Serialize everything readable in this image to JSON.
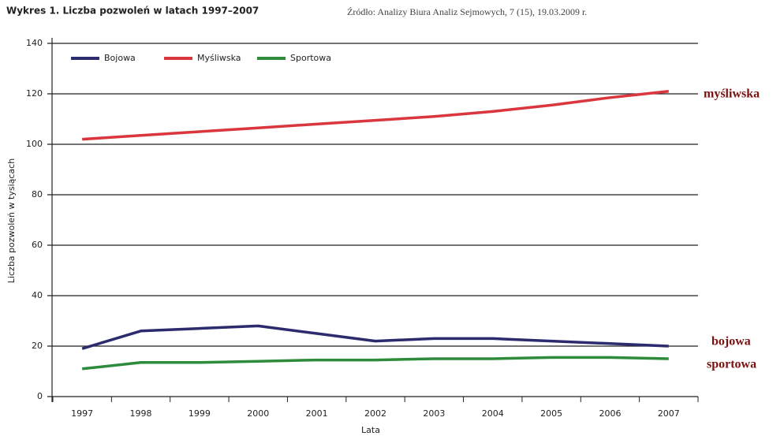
{
  "chart_data": {
    "type": "line",
    "title": "Wykres 1. Liczba pozwoleń w latach 1997–2007",
    "subtitle": "Źródło: Analizy Biura Analiz Sejmowych, 7 (15), 19.03.2009 r.",
    "x_label": "Lata",
    "y_label": "Liczba pozwoleń w tysiącach",
    "categories": [
      "1997",
      "1998",
      "1999",
      "2000",
      "2001",
      "2002",
      "2003",
      "2004",
      "2005",
      "2006",
      "2007"
    ],
    "series": [
      {
        "name": "Bojowa",
        "color": "#2b2b6e",
        "values": [
          19,
          26,
          27,
          28,
          25,
          22,
          23,
          23,
          22,
          21,
          20
        ]
      },
      {
        "name": "Myśliwska",
        "color": "#d9363e",
        "values": [
          102,
          103.5,
          105,
          106.5,
          108,
          109.5,
          111,
          113,
          115.5,
          118.5,
          121
        ]
      },
      {
        "name": "Sportowa",
        "color": "#2e8b3c",
        "values": [
          11,
          13.5,
          13.5,
          14,
          14.5,
          14.5,
          15,
          15,
          15.5,
          15.5,
          15
        ]
      }
    ],
    "annotations": [
      "myśliwska",
      "bojowa",
      "sportowa"
    ],
    "ylim": [
      0,
      140
    ],
    "yticks": [
      0,
      20,
      40,
      60,
      80,
      100,
      120,
      140
    ],
    "grid": true,
    "legend": "top-left"
  }
}
